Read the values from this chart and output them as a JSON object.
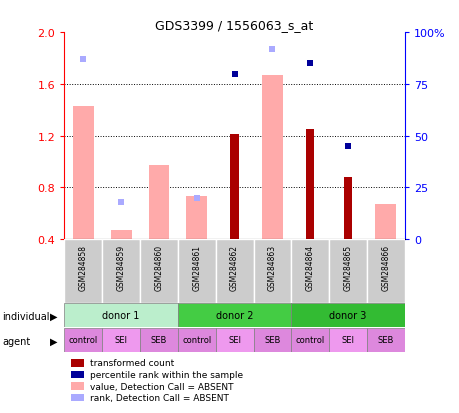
{
  "title": "GDS3399 / 1556063_s_at",
  "samples": [
    "GSM284858",
    "GSM284859",
    "GSM284860",
    "GSM284861",
    "GSM284862",
    "GSM284863",
    "GSM284864",
    "GSM284865",
    "GSM284866"
  ],
  "value_absent": [
    1.43,
    0.47,
    0.97,
    0.73,
    null,
    1.67,
    null,
    null,
    0.67
  ],
  "rank_absent": [
    87,
    18,
    null,
    20,
    null,
    92,
    null,
    null,
    null
  ],
  "transformed_count": [
    null,
    null,
    null,
    null,
    1.21,
    null,
    1.25,
    0.88,
    null
  ],
  "percentile_rank": [
    null,
    null,
    null,
    null,
    80,
    null,
    85,
    45,
    null
  ],
  "ylim_left": [
    0.4,
    2.0
  ],
  "ylim_right": [
    0,
    100
  ],
  "yticks_left": [
    0.4,
    0.8,
    1.2,
    1.6,
    2.0
  ],
  "yticks_right": [
    0,
    25,
    50,
    75,
    100
  ],
  "ytick_labels_right": [
    "0",
    "25",
    "50",
    "75",
    "100%"
  ],
  "grid_lines": [
    0.8,
    1.2,
    1.6
  ],
  "color_transformed": "#aa0000",
  "color_percentile": "#000099",
  "color_value_absent": "#ffaaaa",
  "color_rank_absent": "#aaaaff",
  "donors": [
    {
      "label": "donor 1",
      "start": 0,
      "end": 3,
      "color": "#bbeecc"
    },
    {
      "label": "donor 2",
      "start": 3,
      "end": 6,
      "color": "#44cc44"
    },
    {
      "label": "donor 3",
      "start": 6,
      "end": 9,
      "color": "#33bb33"
    }
  ],
  "agents": [
    {
      "label": "control",
      "color": "#dd88dd"
    },
    {
      "label": "SEI",
      "color": "#ee99ee"
    },
    {
      "label": "SEB",
      "color": "#dd88dd"
    },
    {
      "label": "control",
      "color": "#dd88dd"
    },
    {
      "label": "SEI",
      "color": "#ee99ee"
    },
    {
      "label": "SEB",
      "color": "#dd88dd"
    },
    {
      "label": "control",
      "color": "#dd88dd"
    },
    {
      "label": "SEI",
      "color": "#ee99ee"
    },
    {
      "label": "SEB",
      "color": "#dd88dd"
    }
  ],
  "legend": [
    {
      "color": "#aa0000",
      "label": "transformed count"
    },
    {
      "color": "#000099",
      "label": "percentile rank within the sample"
    },
    {
      "color": "#ffaaaa",
      "label": "value, Detection Call = ABSENT"
    },
    {
      "color": "#aaaaff",
      "label": "rank, Detection Call = ABSENT"
    }
  ],
  "sample_bg": "#cccccc"
}
